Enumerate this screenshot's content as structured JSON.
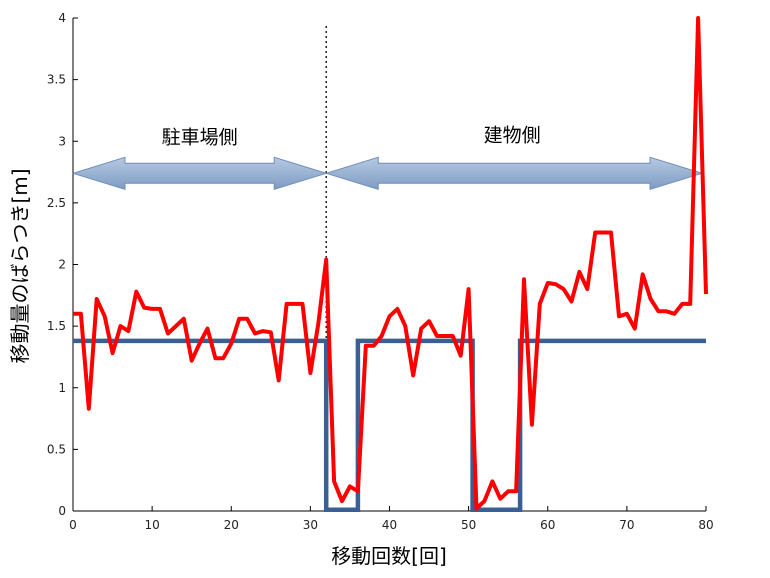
{
  "chart_data": {
    "type": "line",
    "xlabel": "移動回数[回]",
    "ylabel": "移動量のばらつき[m]",
    "xlim": [
      0,
      80
    ],
    "ylim": [
      0,
      4
    ],
    "xticks": [
      0,
      10,
      20,
      30,
      40,
      50,
      60,
      70,
      80
    ],
    "yticks": [
      0,
      0.5,
      1,
      1.5,
      2,
      2.5,
      3,
      3.5,
      4
    ],
    "xtick_labels": [
      "0",
      "10",
      "20",
      "30",
      "40",
      "50",
      "60",
      "70",
      "80"
    ],
    "ytick_labels": [
      "0",
      "0.5",
      "1",
      "1.5",
      "2",
      "2.5",
      "3",
      "3.5",
      "4"
    ],
    "grid": false,
    "legend": "none",
    "annotations": [
      {
        "text": "駐車場側",
        "x": 16,
        "y": 2.98
      },
      {
        "text": "建物側",
        "x": 55.5,
        "y": 3.0
      }
    ],
    "region_arrows": [
      {
        "name": "parking-side",
        "x_start": 0,
        "x_end": 32,
        "y": 2.74
      },
      {
        "name": "building-side",
        "x_start": 32,
        "x_end": 79.5,
        "y": 2.74
      }
    ],
    "divider_x": 32,
    "series": [
      {
        "color": "#ff0000",
        "x": [
          0,
          1,
          2,
          3,
          4,
          5,
          6,
          7,
          8,
          9,
          10,
          11,
          12,
          13,
          14,
          15,
          16,
          17,
          18,
          19,
          20,
          21,
          22,
          23,
          24,
          25,
          26,
          27,
          28,
          29,
          30,
          31,
          32,
          33,
          34,
          35,
          36,
          37,
          38,
          39,
          40,
          41,
          42,
          43,
          44,
          45,
          46,
          47,
          48,
          49,
          50,
          51,
          52,
          53,
          54,
          55,
          56,
          57,
          58,
          59,
          60,
          61,
          62,
          63,
          64,
          65,
          66,
          67,
          68,
          69,
          70,
          71,
          72,
          73,
          74,
          75,
          76,
          77,
          78,
          79,
          80
        ],
        "y": [
          1.6,
          1.6,
          0.83,
          1.72,
          1.58,
          1.28,
          1.5,
          1.46,
          1.78,
          1.65,
          1.64,
          1.64,
          1.44,
          1.5,
          1.56,
          1.22,
          1.36,
          1.48,
          1.24,
          1.24,
          1.36,
          1.56,
          1.56,
          1.44,
          1.46,
          1.45,
          1.06,
          1.68,
          1.68,
          1.68,
          1.12,
          1.52,
          2.04,
          0.24,
          0.08,
          0.2,
          0.16,
          1.34,
          1.34,
          1.42,
          1.58,
          1.64,
          1.5,
          1.1,
          1.48,
          1.54,
          1.42,
          1.42,
          1.42,
          1.26,
          1.8,
          0.02,
          0.08,
          0.24,
          0.1,
          0.16,
          0.16,
          1.88,
          0.7,
          1.68,
          1.85,
          1.84,
          1.8,
          1.7,
          1.94,
          1.8,
          2.26,
          2.26,
          2.26,
          1.58,
          1.6,
          1.48,
          1.92,
          1.72,
          1.62,
          1.62,
          1.6,
          1.68,
          1.68,
          4.0,
          1.76
        ]
      },
      {
        "color": "#3a5f94",
        "x": [
          0,
          32,
          32,
          36,
          36,
          50.5,
          50.5,
          56.5,
          56.5,
          80
        ],
        "y": [
          1.38,
          1.38,
          0.01,
          0.01,
          1.38,
          1.38,
          0.01,
          0.01,
          1.38,
          1.38
        ]
      }
    ]
  }
}
